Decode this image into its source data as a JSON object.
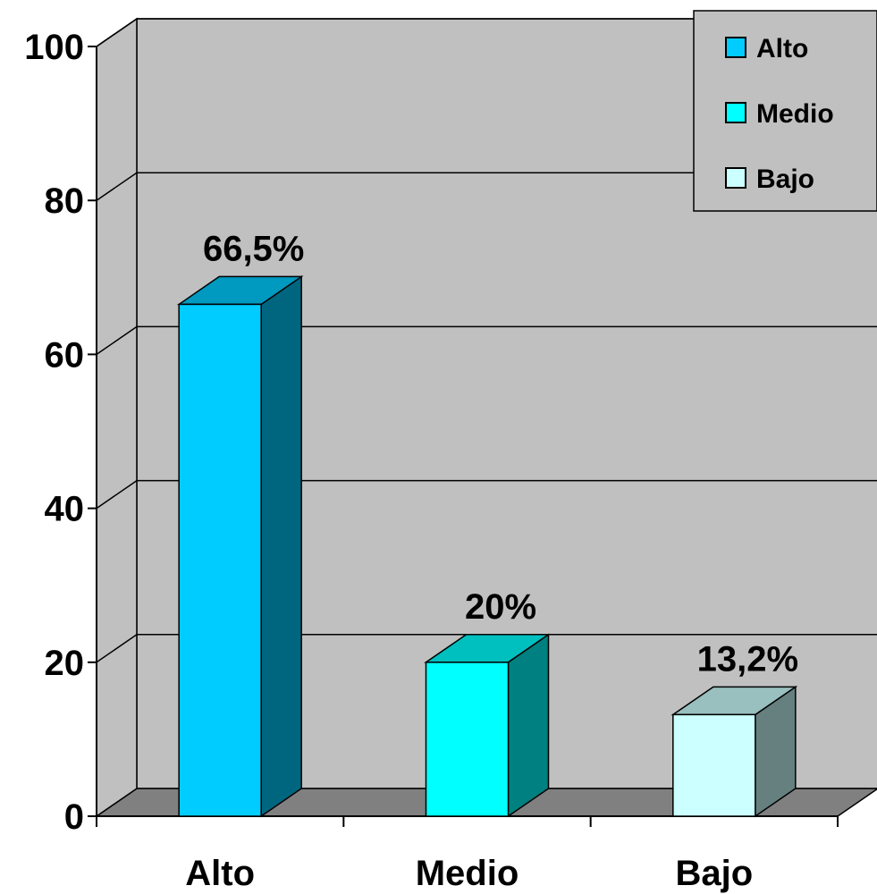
{
  "chart_data": {
    "type": "bar",
    "categories": [
      "Alto",
      "Medio",
      "Bajo"
    ],
    "values": [
      66.5,
      20,
      13.2
    ],
    "data_labels": [
      "66,5%",
      "20%",
      "13,2%"
    ],
    "ylim": [
      0,
      100
    ],
    "yticks": [
      0,
      20,
      40,
      60,
      80,
      100
    ],
    "grid": true,
    "legend": {
      "placement": "top-right",
      "entries": [
        "Alto",
        "Medio",
        "Bajo"
      ]
    },
    "colors": {
      "front": [
        "#00CCFF",
        "#00FFFF",
        "#CCFFFF"
      ],
      "side": [
        "#006680",
        "#008080",
        "#668080"
      ],
      "top": [
        "#0099BF",
        "#00BFBF",
        "#99BFBF"
      ],
      "wall": "#C0C0C0",
      "floor": "#808080"
    },
    "style": "3d-column"
  }
}
